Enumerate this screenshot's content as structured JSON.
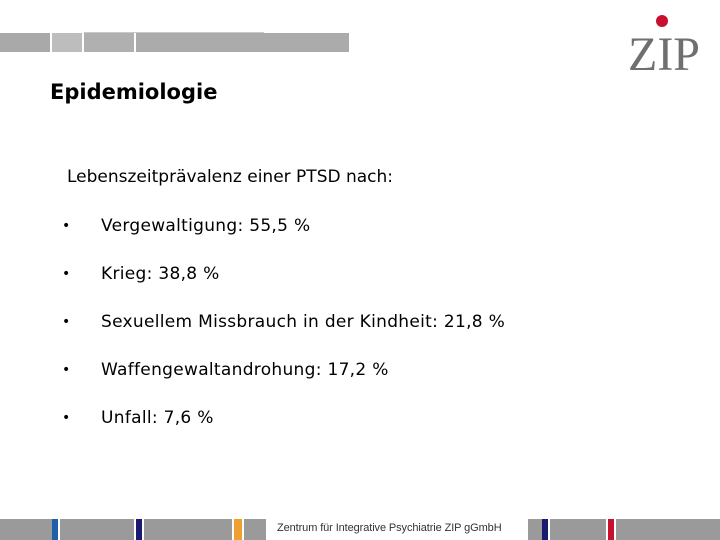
{
  "slide": {
    "title": "Epidemiologie",
    "intro": "Lebenszeitprävalenz einer PTSD nach:",
    "bullet_symbol": "•",
    "bullets": [
      "Vergewaltigung: 55,5 %",
      "Krieg: 38,8 %",
      "Sexuellem Missbrauch in der Kindheit: 21,8 %",
      "Waffengewaltandrohung: 17,2 %",
      "Unfall: 7,6 %"
    ]
  },
  "logo": {
    "text": "ZIP",
    "text_color": "#6f6f6f",
    "dot_color": "#c8102e"
  },
  "footer": {
    "text": "Zentrum für Integrative Psychiatrie ZIP gGmbH",
    "colors": {
      "gray": "#9a9a9a",
      "blue": "#1f5fa8",
      "navy": "#1a1a6e",
      "orange": "#f0a030",
      "red": "#c8102e"
    }
  }
}
